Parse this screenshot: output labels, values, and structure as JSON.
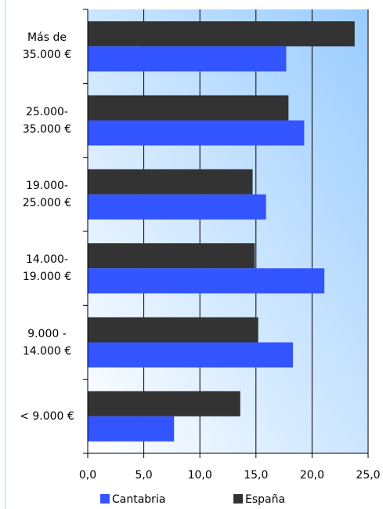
{
  "chart_data": {
    "type": "hbar",
    "categories": [
      "Más de 35.000 €",
      "25.000-35.000 €",
      "19.000-25.000 €",
      "14.000-19.000 €",
      "9.000 - 14.000 €",
      "< 9.000 €"
    ],
    "series": [
      {
        "name": "España",
        "color": "#333333",
        "values": [
          23.8,
          17.9,
          14.7,
          14.9,
          15.2,
          13.6
        ]
      },
      {
        "name": "Cantabria",
        "color": "#3355ff",
        "values": [
          17.7,
          19.3,
          15.9,
          21.1,
          18.3,
          7.7
        ]
      }
    ],
    "legend_order": [
      "Cantabria",
      "España"
    ],
    "xlim": [
      0,
      25
    ],
    "xticks": [
      {
        "value": 0,
        "label": "0,0"
      },
      {
        "value": 5,
        "label": "5,0"
      },
      {
        "value": 10,
        "label": "10,0"
      },
      {
        "value": 15,
        "label": "15,0"
      },
      {
        "value": 20,
        "label": "20,0"
      },
      {
        "value": 25,
        "label": "25,0"
      }
    ],
    "grid": true
  }
}
